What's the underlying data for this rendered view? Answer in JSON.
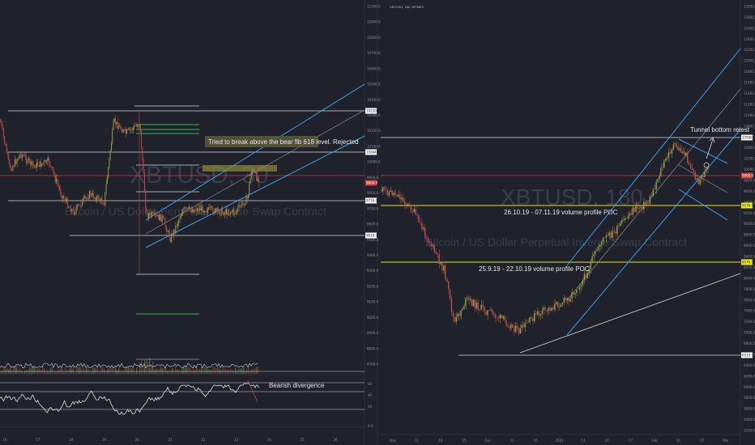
{
  "colors": {
    "background": "#1f212b",
    "candle_up": "#9aa34a",
    "candle_down": "#c0504d",
    "channel": "#3da1e6",
    "level_line": "#d8d8d8",
    "poc_line": "#e4e32f",
    "green_level": "#2fbf4f",
    "red_level": "#c24646",
    "tag_red": "#d43b3b",
    "tag_yellow": "#f4f21c",
    "tag_white": "#ffffff"
  },
  "chart_data": [
    {
      "type": "candlestick",
      "symbol": "XBTUSD",
      "watermark": "XBTUSD, 30",
      "subtitle_watermark": "Bitcoin / US Dollar Perpetual Inverse Swap Contract",
      "x_ticks": [
        "16",
        "17",
        "18",
        "19",
        "20",
        "21",
        "22",
        "23",
        "24",
        "25",
        "26"
      ],
      "y_ticks": [
        "11000.0",
        "10900.0",
        "10800.0",
        "10700.0",
        "10600.0",
        "10500.0",
        "10400.0",
        "10300.0",
        "10200.0",
        "10100.0",
        "10000.0",
        "9900.0",
        "9800.0",
        "9700.0",
        "9600.0",
        "9500.0",
        "9400.0",
        "9300.0",
        "9200.0",
        "9100.0",
        "9000.0",
        "8900.0",
        "8800.0",
        "8700.0"
      ],
      "price_tags": [
        "10250.0",
        "10044.0",
        "9800.0",
        "9730.0",
        "9610.0"
      ],
      "annotation": "Tried to break above the bear fib 618 level. Rejected",
      "indicator": {
        "type": "rsi",
        "y_ticks": [
          "60",
          "40",
          "20"
        ],
        "bottom_tick": "0.0",
        "annotation": "Bearish divergence"
      }
    },
    {
      "type": "candlestick",
      "symbol": "XBTUSD, 180, BITMEX",
      "watermark": "XBTUSD, 180",
      "subtitle_watermark": "Bitcoin / US Dollar Perpetual Inverse Swap Contract",
      "x_ticks": [
        "Nov",
        "11",
        "18",
        "25",
        "Dec",
        "9",
        "16",
        "2020",
        "13",
        "20",
        "27",
        "Feb",
        "10",
        "17",
        "Mar"
      ],
      "y_ticks": [
        "13000.0",
        "12800.0",
        "12600.0",
        "12400.0",
        "12200.0",
        "12000.0",
        "11800.0",
        "11600.0",
        "11400.0",
        "11200.0",
        "11000.0",
        "10800.0",
        "10600.0",
        "10400.0",
        "10200.0",
        "10000.0",
        "9800.0",
        "9600.0",
        "9400.0",
        "9200.0",
        "9000.0",
        "8800.0",
        "8600.0",
        "8400.0",
        "8200.0",
        "8000.0",
        "7800.0",
        "7600.0",
        "7400.0",
        "7200.0",
        "7000.0",
        "6800.0",
        "6600.0",
        "6400.0",
        "6200.0",
        "6000.0",
        "5800.0",
        "5600.0",
        "5400.0",
        "5200.0"
      ],
      "price_tags": [
        "10560.0",
        "9900.0",
        "9276.0",
        "8570.0",
        "6514.0"
      ],
      "annotations": [
        "Tunnel bottom retest",
        "26.10.19 - 07.11.19 volume profile POC",
        "25.9.19 - 22.10.19 volume profile POC"
      ]
    }
  ]
}
